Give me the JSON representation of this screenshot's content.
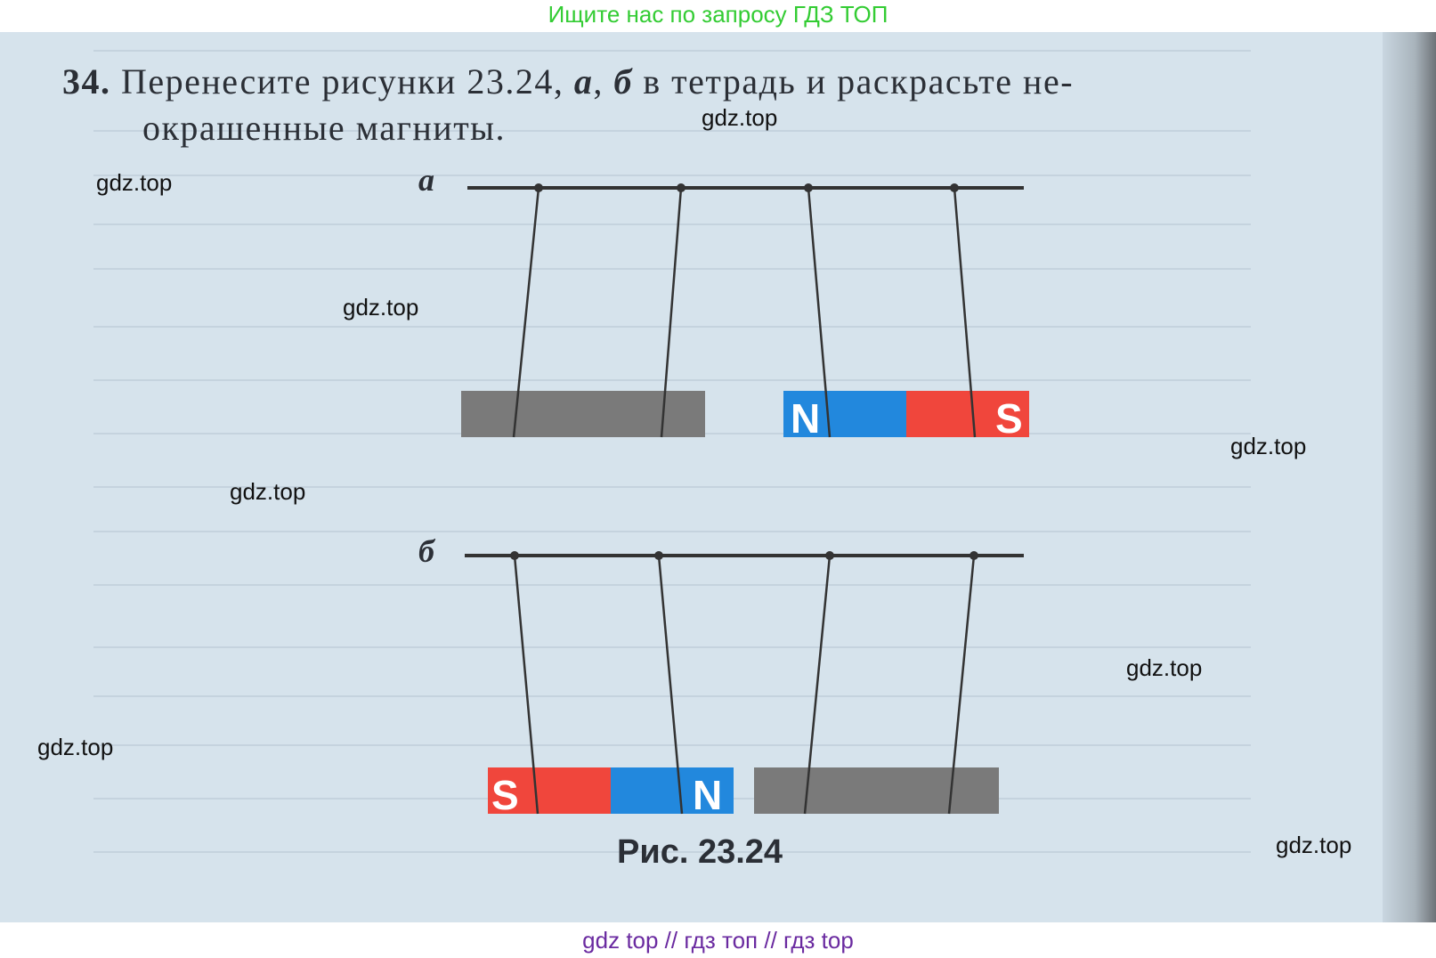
{
  "banner": {
    "top": "Ищите нас по запросу ГДЗ ТОП",
    "bottom": "gdz top  //  гдз топ  //  гдз top"
  },
  "task": {
    "number": "34.",
    "text_part1": "Перенесите рисунки 23.24,",
    "label_a": "а",
    "sep": ",",
    "label_b": "б",
    "text_part2": "в тетрадь и раскрасьте не-",
    "text_line2": "окрашенные магниты."
  },
  "figure": {
    "label_a": "а",
    "label_b": "б",
    "caption": "Рис. 23.24",
    "magnet_a": {
      "left_pole": "N",
      "right_pole": "S"
    },
    "magnet_b": {
      "left_pole": "S",
      "right_pole": "N"
    },
    "colors": {
      "north": "#2288dd",
      "south": "#f0463c",
      "unpainted": "#7a7a7a",
      "thread": "#333333"
    }
  },
  "watermarks": [
    "gdz.top",
    "gdz.top",
    "gdz.top",
    "gdz.top",
    "gdz.top",
    "gdz.top",
    "gdz.top",
    "gdz.top"
  ]
}
